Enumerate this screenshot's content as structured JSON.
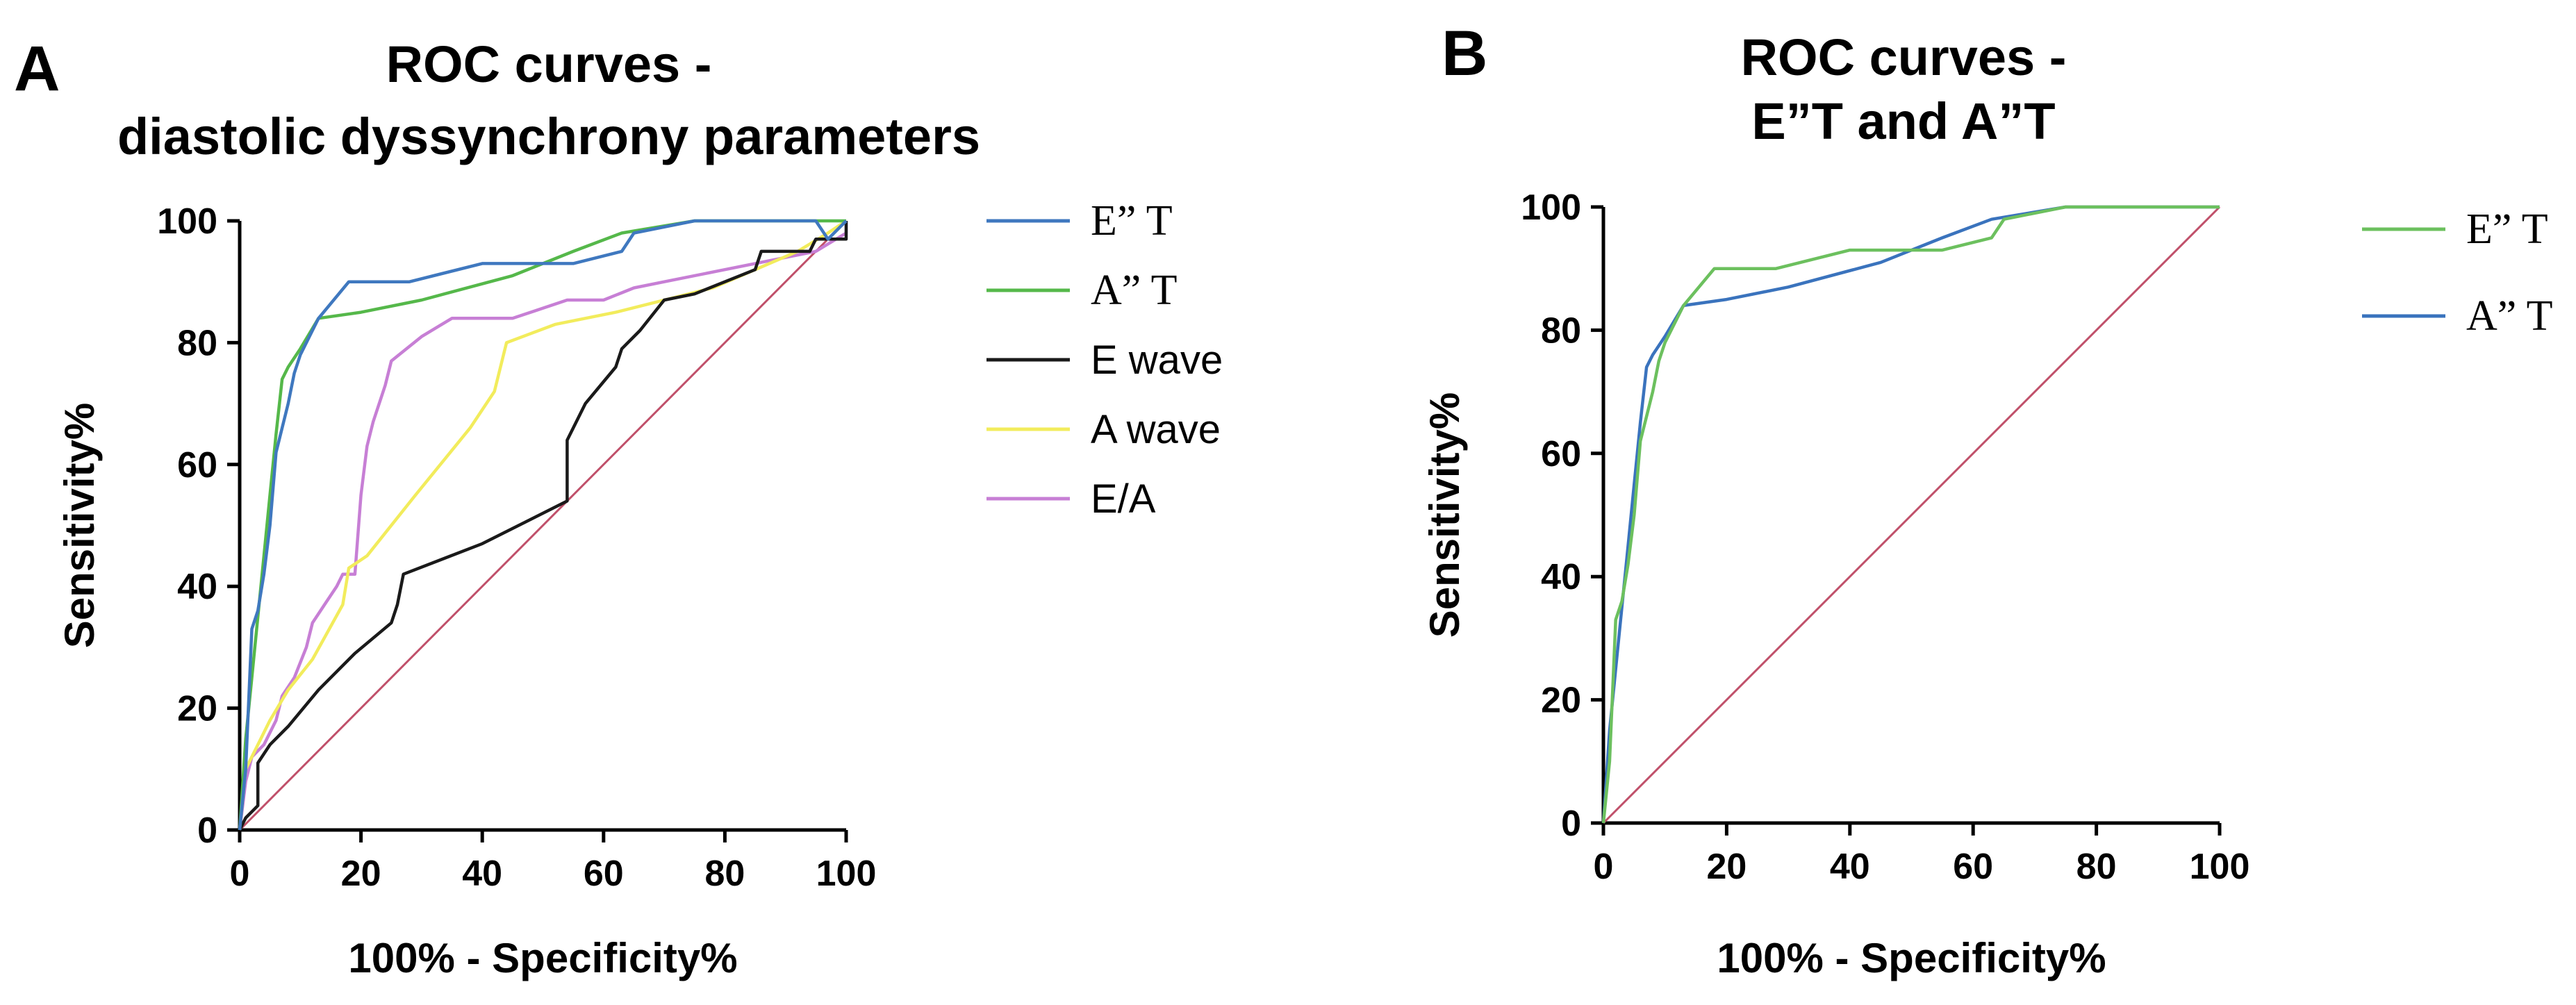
{
  "chart_data": [
    {
      "panel": "A",
      "type": "line",
      "title": [
        "ROC curves -",
        "diastolic dyssynchrony parameters"
      ],
      "xlabel": "100% - Specificity%",
      "ylabel": "Sensitivity%",
      "xlim": [
        0,
        100
      ],
      "ylim": [
        0,
        100
      ],
      "xticks": [
        "0",
        "20",
        "40",
        "60",
        "80",
        "100"
      ],
      "yticks": [
        "0",
        "20",
        "40",
        "60",
        "80",
        "100"
      ],
      "legend_position": "right",
      "reference_line": {
        "color": "#c0506a",
        "points": [
          [
            0,
            0
          ],
          [
            100,
            100
          ]
        ]
      },
      "series": [
        {
          "name": "E” T",
          "color": "#3f78bf",
          "points": [
            [
              0,
              0
            ],
            [
              1,
              10
            ],
            [
              2,
              33
            ],
            [
              3,
              36
            ],
            [
              4,
              42
            ],
            [
              5,
              50
            ],
            [
              6,
              62
            ],
            [
              7,
              66
            ],
            [
              8,
              70
            ],
            [
              9,
              75
            ],
            [
              10,
              78
            ],
            [
              13,
              84
            ],
            [
              18,
              90
            ],
            [
              28,
              90
            ],
            [
              40,
              93
            ],
            [
              55,
              93
            ],
            [
              63,
              95
            ],
            [
              65,
              98
            ],
            [
              75,
              100
            ],
            [
              95,
              100
            ],
            [
              97,
              97
            ],
            [
              100,
              100
            ]
          ]
        },
        {
          "name": "A” T",
          "color": "#55b84a",
          "points": [
            [
              0,
              0
            ],
            [
              1,
              15
            ],
            [
              2,
              25
            ],
            [
              3,
              35
            ],
            [
              4,
              45
            ],
            [
              5,
              55
            ],
            [
              6,
              65
            ],
            [
              7,
              74
            ],
            [
              8,
              76
            ],
            [
              10,
              79
            ],
            [
              13,
              84
            ],
            [
              20,
              85
            ],
            [
              30,
              87
            ],
            [
              45,
              91
            ],
            [
              55,
              95
            ],
            [
              63,
              98
            ],
            [
              75,
              100
            ],
            [
              100,
              100
            ]
          ]
        },
        {
          "name": "E wave",
          "color": "#1a1a1a",
          "points": [
            [
              0,
              0
            ],
            [
              1,
              2
            ],
            [
              2,
              3
            ],
            [
              3,
              4
            ],
            [
              3,
              11
            ],
            [
              5,
              14
            ],
            [
              8,
              17
            ],
            [
              13,
              23
            ],
            [
              19,
              29
            ],
            [
              25,
              34
            ],
            [
              26,
              37
            ],
            [
              27,
              42
            ],
            [
              40,
              47
            ],
            [
              54,
              54
            ],
            [
              54,
              64
            ],
            [
              57,
              70
            ],
            [
              62,
              76
            ],
            [
              63,
              79
            ],
            [
              66,
              82
            ],
            [
              70,
              87
            ],
            [
              75,
              88
            ],
            [
              85,
              92
            ],
            [
              86,
              95
            ],
            [
              94,
              95
            ],
            [
              95,
              97
            ],
            [
              100,
              97
            ],
            [
              100,
              100
            ]
          ]
        },
        {
          "name": "A wave",
          "color": "#f2ec5c",
          "points": [
            [
              0,
              0
            ],
            [
              1,
              10
            ],
            [
              3,
              14
            ],
            [
              5,
              18
            ],
            [
              8,
              23
            ],
            [
              12,
              28
            ],
            [
              17,
              37
            ],
            [
              18,
              43
            ],
            [
              21,
              45
            ],
            [
              29,
              55
            ],
            [
              38,
              66
            ],
            [
              42,
              72
            ],
            [
              44,
              80
            ],
            [
              52,
              83
            ],
            [
              62,
              85
            ],
            [
              78,
              89
            ],
            [
              92,
              95
            ],
            [
              97,
              98
            ],
            [
              100,
              100
            ]
          ]
        },
        {
          "name": "E/A",
          "color": "#c77fd5",
          "points": [
            [
              0,
              0
            ],
            [
              1,
              8
            ],
            [
              2,
              12
            ],
            [
              4,
              14
            ],
            [
              6,
              18
            ],
            [
              7,
              22
            ],
            [
              9,
              25
            ],
            [
              11,
              30
            ],
            [
              12,
              34
            ],
            [
              14,
              37
            ],
            [
              16,
              40
            ],
            [
              17,
              42
            ],
            [
              19,
              42
            ],
            [
              20,
              55
            ],
            [
              21,
              63
            ],
            [
              22,
              67
            ],
            [
              24,
              73
            ],
            [
              25,
              77
            ],
            [
              30,
              81
            ],
            [
              35,
              84
            ],
            [
              45,
              84
            ],
            [
              54,
              87
            ],
            [
              60,
              87
            ],
            [
              65,
              89
            ],
            [
              70,
              90
            ],
            [
              80,
              92
            ],
            [
              95,
              95
            ],
            [
              100,
              98
            ],
            [
              100,
              100
            ]
          ]
        }
      ]
    },
    {
      "panel": "B",
      "type": "line",
      "title": [
        "ROC curves -",
        "E”T and A”T"
      ],
      "xlabel": "100% - Specificity%",
      "ylabel": "Sensitivity%",
      "xlim": [
        0,
        100
      ],
      "ylim": [
        0,
        100
      ],
      "xticks": [
        "0",
        "20",
        "40",
        "60",
        "80",
        "100"
      ],
      "yticks": [
        "0",
        "20",
        "40",
        "60",
        "80",
        "100"
      ],
      "legend_position": "right",
      "reference_line": {
        "color": "#c0506a",
        "points": [
          [
            0,
            0
          ],
          [
            100,
            100
          ]
        ]
      },
      "series": [
        {
          "name": "E” T",
          "color": "#6cc05e",
          "points": [
            [
              0,
              0
            ],
            [
              1,
              10
            ],
            [
              2,
              33
            ],
            [
              3,
              36
            ],
            [
              4,
              42
            ],
            [
              5,
              50
            ],
            [
              6,
              62
            ],
            [
              7,
              66
            ],
            [
              8,
              70
            ],
            [
              9,
              75
            ],
            [
              10,
              78
            ],
            [
              13,
              84
            ],
            [
              18,
              90
            ],
            [
              28,
              90
            ],
            [
              40,
              93
            ],
            [
              55,
              93
            ],
            [
              63,
              95
            ],
            [
              65,
              98
            ],
            [
              75,
              100
            ],
            [
              100,
              100
            ]
          ]
        },
        {
          "name": "A” T",
          "color": "#3a73bd",
          "points": [
            [
              0,
              0
            ],
            [
              1,
              15
            ],
            [
              2,
              25
            ],
            [
              3,
              35
            ],
            [
              4,
              45
            ],
            [
              5,
              55
            ],
            [
              6,
              65
            ],
            [
              7,
              74
            ],
            [
              8,
              76
            ],
            [
              10,
              79
            ],
            [
              13,
              84
            ],
            [
              20,
              85
            ],
            [
              30,
              87
            ],
            [
              45,
              91
            ],
            [
              55,
              95
            ],
            [
              63,
              98
            ],
            [
              75,
              100
            ],
            [
              100,
              100
            ]
          ]
        }
      ]
    }
  ]
}
